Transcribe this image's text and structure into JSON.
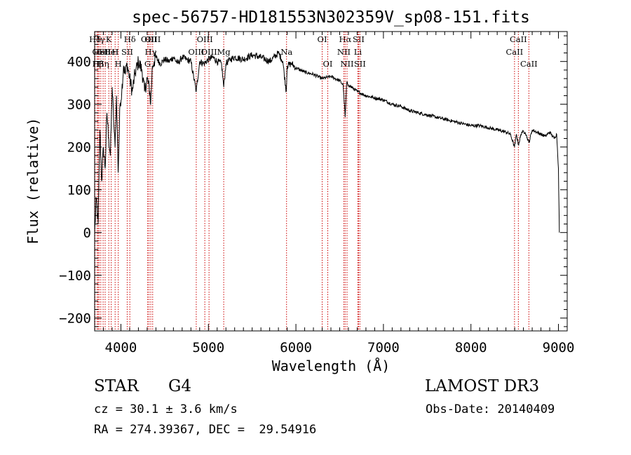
{
  "chart_data": {
    "type": "line",
    "title": "spec-56757-HD181553N302359V_sp08-151.fits",
    "xlabel": "Wavelength (Å)",
    "ylabel": "Flux (relative)",
    "xlim": [
      3700,
      9100
    ],
    "ylim": [
      -230,
      470
    ],
    "xticks": [
      4000,
      5000,
      6000,
      7000,
      8000,
      9000
    ],
    "yticks": [
      -200,
      -100,
      0,
      100,
      200,
      300,
      400
    ],
    "x_minor_step": 100,
    "y_minor_step": 20,
    "series": [
      {
        "name": "spectrum",
        "x": [
          3700,
          3720,
          3740,
          3760,
          3780,
          3800,
          3820,
          3840,
          3860,
          3880,
          3900,
          3920,
          3933,
          3950,
          3968,
          3990,
          4010,
          4030,
          4050,
          4070,
          4100,
          4130,
          4160,
          4200,
          4240,
          4270,
          4300,
          4330,
          4340,
          4360,
          4380,
          4400,
          4450,
          4500,
          4550,
          4600,
          4650,
          4700,
          4750,
          4800,
          4861,
          4900,
          4950,
          5000,
          5050,
          5100,
          5150,
          5175,
          5200,
          5250,
          5300,
          5400,
          5500,
          5600,
          5700,
          5800,
          5850,
          5890,
          5900,
          5950,
          6000,
          6100,
          6200,
          6300,
          6400,
          6500,
          6540,
          6563,
          6580,
          6600,
          6700,
          6800,
          6900,
          7000,
          7100,
          7200,
          7300,
          7400,
          7500,
          7600,
          7700,
          7800,
          7900,
          8000,
          8100,
          8200,
          8300,
          8400,
          8450,
          8498,
          8520,
          8542,
          8580,
          8620,
          8662,
          8700,
          8750,
          8800,
          8850,
          8900,
          8950,
          8980,
          9000,
          9010
        ],
        "y": [
          0,
          80,
          20,
          240,
          120,
          200,
          150,
          280,
          220,
          180,
          340,
          250,
          200,
          320,
          140,
          300,
          330,
          390,
          370,
          395,
          360,
          330,
          370,
          400,
          380,
          330,
          360,
          330,
          300,
          390,
          400,
          410,
          395,
          405,
          400,
          410,
          395,
          410,
          405,
          400,
          330,
          400,
          395,
          405,
          410,
          400,
          395,
          340,
          395,
          405,
          410,
          405,
          415,
          410,
          400,
          420,
          400,
          330,
          390,
          395,
          385,
          375,
          370,
          360,
          365,
          355,
          345,
          270,
          350,
          345,
          330,
          320,
          315,
          310,
          300,
          295,
          285,
          280,
          275,
          270,
          265,
          260,
          255,
          250,
          250,
          245,
          240,
          235,
          230,
          200,
          230,
          205,
          235,
          235,
          210,
          240,
          235,
          230,
          225,
          235,
          220,
          230,
          150,
          0
        ]
      }
    ],
    "line_markers": [
      {
        "label": "Hδ",
        "x": 3705,
        "row": 0
      },
      {
        "label": "OI",
        "x": 3728,
        "row": 1
      },
      {
        "label": "Hβ",
        "x": 3740,
        "row": 2
      },
      {
        "label": "Hγ",
        "x": 3750,
        "row": 0
      },
      {
        "label": "HeI",
        "x": 3770,
        "row": 1
      },
      {
        "label": "Hη",
        "x": 3797,
        "row": 2
      },
      {
        "label": "SII",
        "x": 3820,
        "row": 1
      },
      {
        "label": "K",
        "x": 3862,
        "row": 0
      },
      {
        "label": "HeI",
        "x": 3889,
        "row": 1
      },
      {
        "label": "H",
        "x": 3934,
        "row": 1
      },
      {
        "label": "H",
        "x": 3970,
        "row": 2
      },
      {
        "label": "Hδ",
        "x": 4102,
        "row": 0
      },
      {
        "label": "SII",
        "x": 4072,
        "row": 1
      },
      {
        "label": "OIII",
        "x": 4320,
        "row": 0
      },
      {
        "label": "Hγ",
        "x": 4341,
        "row": 1
      },
      {
        "label": "G",
        "x": 4305,
        "row": 2
      },
      {
        "label": "OIII",
        "x": 4363,
        "row": 0
      },
      {
        "label": "OIII",
        "x": 4959,
        "row": 0
      },
      {
        "label": "OIII",
        "x": 4861,
        "row": 1
      },
      {
        "label": "OIII",
        "x": 5007,
        "row": 1
      },
      {
        "label": "Mg",
        "x": 5175,
        "row": 1
      },
      {
        "label": "Na",
        "x": 5893,
        "row": 1
      },
      {
        "label": "OI",
        "x": 6300,
        "row": 0
      },
      {
        "label": "OI",
        "x": 6364,
        "row": 2
      },
      {
        "label": "Hα",
        "x": 6563,
        "row": 0
      },
      {
        "label": "NII",
        "x": 6548,
        "row": 1
      },
      {
        "label": "NII",
        "x": 6584,
        "row": 2
      },
      {
        "label": "SII",
        "x": 6716,
        "row": 0
      },
      {
        "label": "Li",
        "x": 6708,
        "row": 1
      },
      {
        "label": "SII",
        "x": 6731,
        "row": 2
      },
      {
        "label": "CaII",
        "x": 8542,
        "row": 0
      },
      {
        "label": "CaII",
        "x": 8498,
        "row": 1
      },
      {
        "label": "CaII",
        "x": 8662,
        "row": 2
      }
    ]
  },
  "info": {
    "obj_class": "STAR",
    "subclass": "G4",
    "survey": "LAMOST DR3",
    "cz": "cz = 30.1 ± 3.6 km/s",
    "obs_date": "Obs-Date: 20140409",
    "coords": "RA = 274.39367, DEC =  29.54916"
  },
  "colors": {
    "line": "#000000",
    "marker": "#cc0000"
  }
}
